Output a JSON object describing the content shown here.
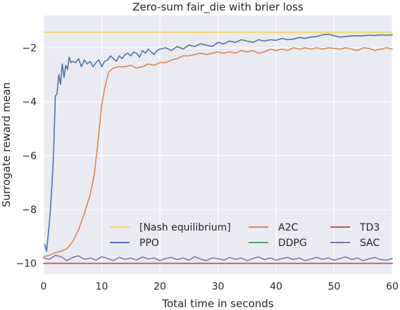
{
  "chart_data": {
    "type": "line",
    "title": "Zero-sum fair_die with brier loss",
    "xlabel": "Total time in seconds",
    "ylabel": "Surrogate reward mean",
    "xlim": [
      0,
      60
    ],
    "ylim": [
      -10.4,
      -0.8
    ],
    "x_ticks": [
      0,
      10,
      20,
      30,
      40,
      50,
      60
    ],
    "y_ticks": [
      -10,
      -8,
      -6,
      -4,
      -2
    ],
    "x_tick_labels": [
      "0",
      "10",
      "20",
      "30",
      "40",
      "50",
      "60"
    ],
    "y_tick_labels": [
      "−10",
      "−8",
      "−6",
      "−4",
      "−2"
    ],
    "grid": true,
    "legend_position": "lower-right",
    "legend_columns": 3,
    "colors": {
      "background": "#eaeaf2",
      "grid": "#ffffff"
    },
    "series": [
      {
        "name": "[Nash equilibrium]",
        "color": "#f5d64c",
        "x": [
          0,
          60
        ],
        "y": [
          -1.42,
          -1.42
        ]
      },
      {
        "name": "PPO",
        "color": "#4c72b0",
        "x": [
          0.2,
          0.5,
          0.8,
          1.1,
          1.4,
          1.7,
          2.0,
          2.3,
          2.6,
          2.9,
          3.2,
          3.5,
          3.8,
          4.1,
          4.4,
          4.7,
          5,
          5.5,
          6,
          6.5,
          7,
          7.5,
          8,
          8.5,
          9,
          9.5,
          10,
          10.5,
          11,
          11.5,
          12,
          12.5,
          13,
          13.5,
          14,
          14.5,
          15,
          15.5,
          16,
          16.5,
          17,
          17.5,
          18,
          18.5,
          19,
          19.5,
          20,
          21,
          22,
          23,
          24,
          25,
          26,
          27,
          28,
          29,
          30,
          31,
          32,
          33,
          34,
          35,
          36,
          37,
          38,
          39,
          40,
          41,
          42,
          43,
          44,
          45,
          46,
          47,
          48,
          49,
          50,
          51,
          52,
          53,
          54,
          55,
          56,
          57,
          58,
          59,
          60
        ],
        "y": [
          -9.3,
          -9.55,
          -8.9,
          -8.2,
          -7.2,
          -6.0,
          -3.8,
          -3.7,
          -3.0,
          -3.35,
          -2.6,
          -3.1,
          -2.65,
          -2.8,
          -2.35,
          -2.55,
          -2.5,
          -2.55,
          -2.4,
          -2.7,
          -2.45,
          -2.6,
          -2.5,
          -2.7,
          -2.55,
          -2.45,
          -2.7,
          -2.5,
          -2.45,
          -2.3,
          -2.4,
          -2.5,
          -2.3,
          -2.4,
          -2.25,
          -2.2,
          -2.3,
          -2.15,
          -2.2,
          -2.35,
          -2.1,
          -2.2,
          -2.05,
          -2.15,
          -2.25,
          -2.1,
          -2.05,
          -2.0,
          -2.1,
          -1.95,
          -2.05,
          -1.9,
          -1.95,
          -1.85,
          -1.9,
          -1.95,
          -1.8,
          -1.85,
          -1.75,
          -1.8,
          -1.7,
          -1.75,
          -1.8,
          -1.7,
          -1.75,
          -1.7,
          -1.72,
          -1.65,
          -1.7,
          -1.68,
          -1.62,
          -1.65,
          -1.6,
          -1.58,
          -1.52,
          -1.5,
          -1.55,
          -1.6,
          -1.58,
          -1.56,
          -1.55,
          -1.55,
          -1.53,
          -1.54,
          -1.52,
          -1.53,
          -1.52
        ]
      },
      {
        "name": "A2C",
        "color": "#dd8452",
        "x": [
          0,
          1,
          2,
          3,
          4,
          5,
          6,
          7,
          8,
          8.7,
          9.3,
          10,
          10.6,
          11.2,
          12,
          13,
          14,
          15,
          16,
          17,
          18,
          19,
          20,
          21,
          22,
          23,
          24,
          25,
          26,
          27,
          28,
          29,
          30,
          31,
          32,
          33,
          34,
          35,
          36,
          37,
          38,
          39,
          40,
          41,
          42,
          43,
          44,
          45,
          46,
          47,
          48,
          49,
          50,
          51,
          52,
          53,
          54,
          55,
          56,
          57,
          58,
          59,
          60
        ],
        "y": [
          -9.75,
          -9.7,
          -9.6,
          -9.55,
          -9.45,
          -9.2,
          -8.75,
          -8.15,
          -7.45,
          -6.7,
          -5.6,
          -4.1,
          -3.4,
          -2.9,
          -2.75,
          -2.7,
          -2.7,
          -2.65,
          -2.75,
          -2.7,
          -2.6,
          -2.65,
          -2.55,
          -2.55,
          -2.45,
          -2.4,
          -2.3,
          -2.3,
          -2.25,
          -2.2,
          -2.25,
          -2.2,
          -2.15,
          -2.2,
          -2.15,
          -2.2,
          -2.1,
          -2.15,
          -2.1,
          -2.2,
          -2.15,
          -2.05,
          -2.1,
          -2.05,
          -2.1,
          -2.0,
          -2.05,
          -2.0,
          -2.05,
          -2.0,
          -2.05,
          -2.0,
          -2.02,
          -2.05,
          -2.0,
          -2.05,
          -2.1,
          -2.0,
          -2.02,
          -2.1,
          -2.05,
          -2.0,
          -2.05
        ]
      },
      {
        "name": "DDPG",
        "color": "#55a868",
        "x": [
          0,
          60
        ],
        "y": [
          -10.0,
          -10.0
        ]
      },
      {
        "name": "TD3",
        "color": "#c44e52",
        "x": [
          0,
          60
        ],
        "y": [
          -10.0,
          -10.0
        ]
      },
      {
        "name": "SAC",
        "color": "#8172b3",
        "x": [
          0,
          1,
          2,
          3,
          4,
          5,
          6,
          7,
          8,
          9,
          10,
          11,
          12,
          13,
          14,
          15,
          16,
          17,
          18,
          19,
          20,
          21,
          22,
          23,
          24,
          25,
          26,
          27,
          28,
          29,
          30,
          31,
          32,
          33,
          34,
          35,
          36,
          37,
          38,
          39,
          40,
          41,
          42,
          43,
          44,
          45,
          46,
          47,
          48,
          49,
          50,
          51,
          52,
          53,
          54,
          55,
          56,
          57,
          58,
          59,
          60
        ],
        "y": [
          -9.8,
          -9.85,
          -9.7,
          -9.75,
          -9.9,
          -9.78,
          -9.72,
          -9.85,
          -9.8,
          -9.88,
          -9.75,
          -9.82,
          -9.9,
          -9.78,
          -9.85,
          -9.8,
          -9.88,
          -9.76,
          -9.84,
          -9.8,
          -9.9,
          -9.82,
          -9.78,
          -9.86,
          -9.8,
          -9.88,
          -9.75,
          -9.84,
          -9.9,
          -9.8,
          -9.82,
          -9.88,
          -9.78,
          -9.85,
          -9.8,
          -9.9,
          -9.82,
          -9.76,
          -9.86,
          -9.8,
          -9.88,
          -9.82,
          -9.78,
          -9.86,
          -9.8,
          -9.9,
          -9.84,
          -9.78,
          -9.85,
          -9.8,
          -9.88,
          -9.82,
          -9.76,
          -9.86,
          -9.8,
          -9.9,
          -9.83,
          -9.78,
          -9.86,
          -9.88,
          -9.82
        ]
      }
    ]
  }
}
